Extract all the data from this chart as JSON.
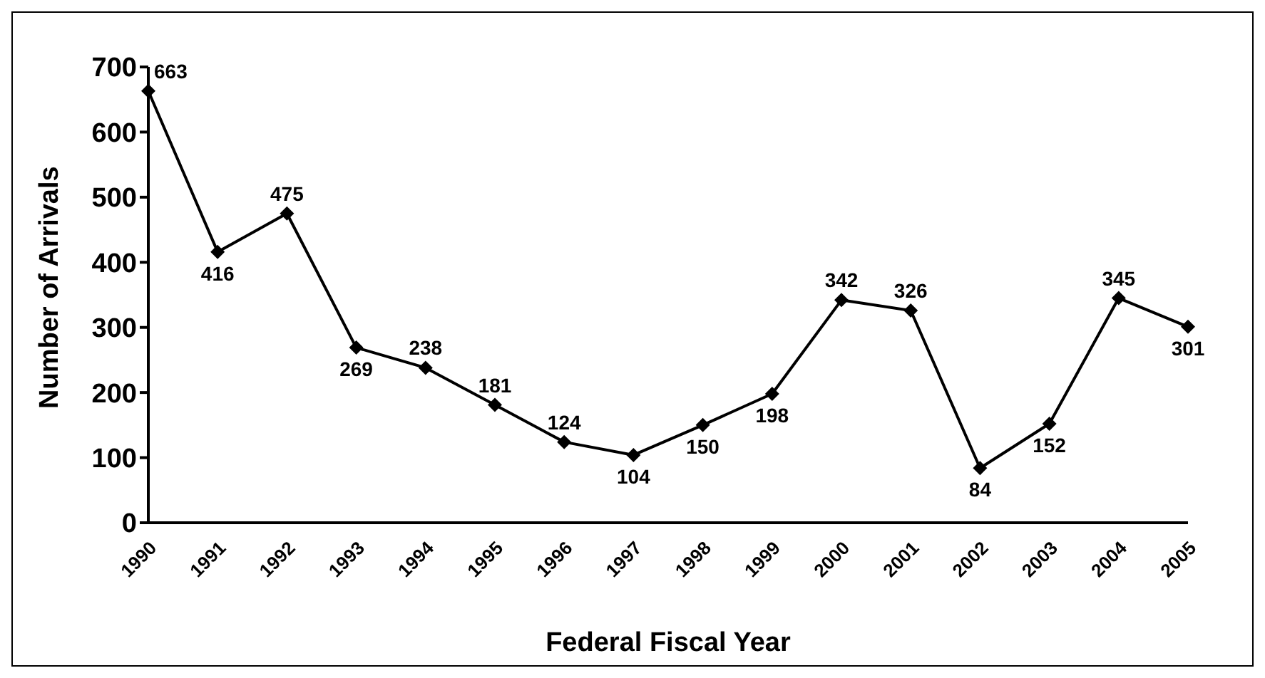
{
  "chart_data": {
    "type": "line",
    "xlabel": "Federal Fiscal Year",
    "ylabel": "Number of Arrivals",
    "categories": [
      "1990",
      "1991",
      "1992",
      "1993",
      "1994",
      "1995",
      "1996",
      "1997",
      "1998",
      "1999",
      "2000",
      "2001",
      "2002",
      "2003",
      "2004",
      "2005"
    ],
    "series": [
      {
        "color": "#000000",
        "values": [
          663,
          416,
          475,
          269,
          238,
          181,
          124,
          104,
          150,
          198,
          342,
          326,
          84,
          152,
          345,
          301
        ]
      }
    ],
    "ylim": [
      0,
      700
    ],
    "yticks": [
      0,
      100,
      200,
      300,
      400,
      500,
      600,
      700
    ],
    "grid": false,
    "legend": false,
    "marker": "diamond",
    "line_style": "solid",
    "data_labels": true
  }
}
